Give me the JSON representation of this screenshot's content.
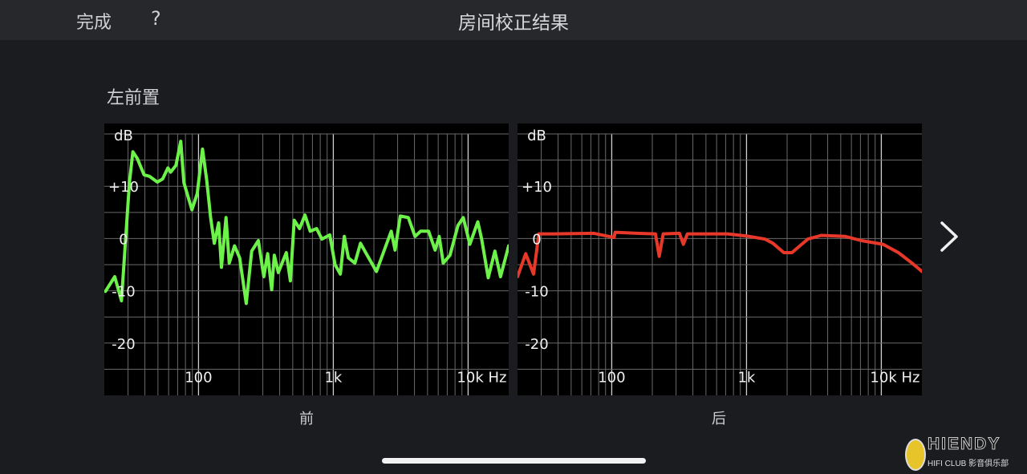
{
  "header": {
    "done_label": "完成",
    "help_label": "?",
    "title": "房间校正结果"
  },
  "speaker_label": "左前置",
  "next_icon": "chevron-right-icon",
  "watermark": {
    "brand": "HIENDY",
    "sub": "HIFI CLUB 影音俱乐部"
  },
  "chart_data": [
    {
      "type": "line",
      "caption": "前",
      "color": "#6df24a",
      "ylabel": "dB",
      "xunit": "Hz",
      "xscale": "log",
      "xlim": [
        20,
        20000
      ],
      "ylim": [
        -30,
        22
      ],
      "grid": true,
      "yticks": [
        {
          "v": 10,
          "label": "+10"
        },
        {
          "v": 0,
          "label": "0"
        },
        {
          "v": -10,
          "label": "-10"
        },
        {
          "v": -20,
          "label": "-20"
        }
      ],
      "xticks": [
        {
          "v": 100,
          "label": "100"
        },
        {
          "v": 1000,
          "label": "1k"
        },
        {
          "v": 10000,
          "label": "10k Hz"
        }
      ],
      "points": [
        [
          20.4,
          -10.1
        ],
        [
          23.9,
          -7.3
        ],
        [
          26.8,
          -11.9
        ],
        [
          30.7,
          10.7
        ],
        [
          32.6,
          16.6
        ],
        [
          35.2,
          15.3
        ],
        [
          39.4,
          12.2
        ],
        [
          43.2,
          11.9
        ],
        [
          49.5,
          10.8
        ],
        [
          54.2,
          11.4
        ],
        [
          59.3,
          13.5
        ],
        [
          62.1,
          12.7
        ],
        [
          68,
          14
        ],
        [
          73.8,
          18.6
        ],
        [
          77.9,
          10.7
        ],
        [
          89.3,
          5.5
        ],
        [
          97.8,
          8.6
        ],
        [
          107,
          17.1
        ],
        [
          115,
          11.2
        ],
        [
          123,
          4
        ],
        [
          131,
          -0.9
        ],
        [
          141,
          3
        ],
        [
          148,
          -5.5
        ],
        [
          160,
          4
        ],
        [
          169,
          -4.7
        ],
        [
          185,
          -1.4
        ],
        [
          202,
          -3.7
        ],
        [
          226,
          -12.4
        ],
        [
          248,
          -2.4
        ],
        [
          278,
          -0.4
        ],
        [
          305,
          -7.3
        ],
        [
          326,
          -2.9
        ],
        [
          349,
          -9.8
        ],
        [
          365,
          -3.2
        ],
        [
          391,
          -6.5
        ],
        [
          448,
          -2.7
        ],
        [
          480,
          -8.1
        ],
        [
          513,
          3.5
        ],
        [
          562,
          1.9
        ],
        [
          616,
          4.5
        ],
        [
          674,
          1.4
        ],
        [
          752,
          1.9
        ],
        [
          823,
          -0.1
        ],
        [
          941,
          0.7
        ],
        [
          1030,
          -5
        ],
        [
          1127,
          -6.8
        ],
        [
          1206,
          0.4
        ],
        [
          1293,
          -3.7
        ],
        [
          1445,
          -4.7
        ],
        [
          1590,
          -0.9
        ],
        [
          1740,
          -2.7
        ],
        [
          2090,
          -6.3
        ],
        [
          2350,
          -2.7
        ],
        [
          2690,
          1.4
        ],
        [
          2870,
          -2.2
        ],
        [
          3140,
          4.3
        ],
        [
          3600,
          4
        ],
        [
          4040,
          0.4
        ],
        [
          4440,
          1.4
        ],
        [
          5090,
          1.4
        ],
        [
          5690,
          -2.2
        ],
        [
          6100,
          0.4
        ],
        [
          6540,
          -4.7
        ],
        [
          7330,
          -3.2
        ],
        [
          8410,
          2.5
        ],
        [
          9210,
          4
        ],
        [
          10300,
          -1.1
        ],
        [
          11800,
          3.2
        ],
        [
          12600,
          -0.1
        ],
        [
          14100,
          -7.5
        ],
        [
          15800,
          -2.4
        ],
        [
          17400,
          -7.3
        ],
        [
          20000,
          -1.4
        ]
      ]
    },
    {
      "type": "line",
      "caption": "后",
      "color": "#e8382a",
      "ylabel": "dB",
      "xunit": "Hz",
      "xscale": "log",
      "xlim": [
        20,
        20000
      ],
      "ylim": [
        -30,
        22
      ],
      "grid": true,
      "yticks": [
        {
          "v": 10,
          "label": "+10"
        },
        {
          "v": 0,
          "label": "0"
        },
        {
          "v": -10,
          "label": "-10"
        },
        {
          "v": -20,
          "label": "-20"
        }
      ],
      "xticks": [
        {
          "v": 100,
          "label": "100"
        },
        {
          "v": 1000,
          "label": "1k"
        },
        {
          "v": 10000,
          "label": "10k Hz"
        }
      ],
      "points": [
        [
          20,
          -7.3
        ],
        [
          23,
          -2.9
        ],
        [
          26.3,
          -6.8
        ],
        [
          28.8,
          0.9
        ],
        [
          37,
          0.9
        ],
        [
          73.6,
          1
        ],
        [
          104,
          0.2
        ],
        [
          106,
          1.2
        ],
        [
          153,
          1
        ],
        [
          211,
          0.9
        ],
        [
          225,
          -3.4
        ],
        [
          241,
          0.9
        ],
        [
          318,
          1
        ],
        [
          340,
          -1.1
        ],
        [
          364,
          0.9
        ],
        [
          722,
          0.9
        ],
        [
          995,
          0.5
        ],
        [
          1370,
          -0.1
        ],
        [
          1570,
          -0.9
        ],
        [
          1890,
          -2.7
        ],
        [
          2170,
          -2.7
        ],
        [
          2850,
          -0.1
        ],
        [
          3580,
          0.6
        ],
        [
          5410,
          0.4
        ],
        [
          7120,
          -0.4
        ],
        [
          10300,
          -1.1
        ],
        [
          13400,
          -2.7
        ],
        [
          16900,
          -4.7
        ],
        [
          19400,
          -6
        ],
        [
          20000,
          -6.3
        ]
      ]
    }
  ]
}
